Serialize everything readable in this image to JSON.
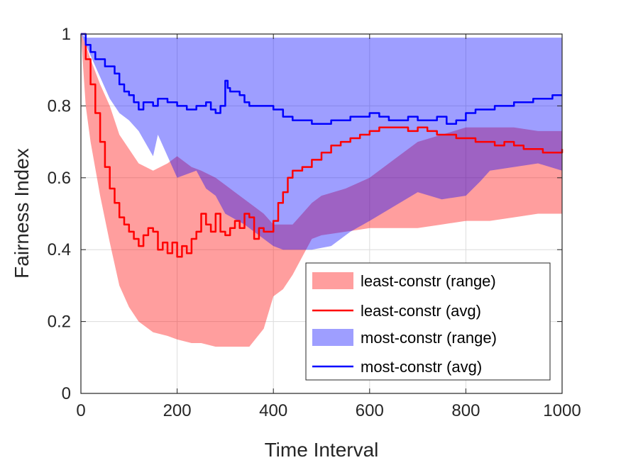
{
  "chart_data": {
    "type": "area",
    "xlabel": "Time Interval",
    "ylabel": "Fairness Index",
    "xlim": [
      0,
      1000
    ],
    "ylim": [
      0,
      1
    ],
    "xticks": [
      0,
      200,
      400,
      600,
      800,
      1000
    ],
    "yticks": [
      0,
      0.2,
      0.4,
      0.6,
      0.8,
      1
    ],
    "xtick_labels": [
      "0",
      "200",
      "400",
      "600",
      "800",
      "1000"
    ],
    "ytick_labels": [
      "0",
      "0.2",
      "0.4",
      "0.6",
      "0.8",
      "1"
    ],
    "grid": true,
    "legend_position": "bottom-right",
    "series": [
      {
        "name": "least-constr (range)",
        "kind": "range",
        "color": "#ff0000",
        "opacity": 0.38,
        "x": [
          0,
          10,
          20,
          40,
          60,
          80,
          100,
          120,
          150,
          180,
          200,
          230,
          250,
          280,
          300,
          320,
          350,
          380,
          400,
          420,
          440,
          460,
          480,
          500,
          550,
          600,
          650,
          700,
          750,
          800,
          850,
          900,
          950,
          1000
        ],
        "upper": [
          1,
          0.97,
          0.93,
          0.86,
          0.8,
          0.72,
          0.68,
          0.64,
          0.62,
          0.64,
          0.66,
          0.63,
          0.62,
          0.6,
          0.58,
          0.56,
          0.53,
          0.5,
          0.47,
          0.47,
          0.47,
          0.5,
          0.53,
          0.55,
          0.57,
          0.6,
          0.65,
          0.7,
          0.72,
          0.74,
          0.74,
          0.74,
          0.73,
          0.73
        ],
        "lower": [
          1,
          0.8,
          0.7,
          0.55,
          0.42,
          0.3,
          0.24,
          0.2,
          0.17,
          0.16,
          0.15,
          0.14,
          0.14,
          0.13,
          0.13,
          0.13,
          0.13,
          0.18,
          0.27,
          0.29,
          0.33,
          0.38,
          0.43,
          0.44,
          0.45,
          0.46,
          0.46,
          0.46,
          0.47,
          0.48,
          0.48,
          0.49,
          0.5,
          0.5
        ]
      },
      {
        "name": "least-constr (avg)",
        "kind": "line",
        "color": "#ff0000",
        "x": [
          0,
          10,
          20,
          30,
          40,
          50,
          60,
          70,
          80,
          90,
          100,
          110,
          120,
          130,
          140,
          150,
          160,
          170,
          180,
          190,
          200,
          210,
          220,
          230,
          240,
          250,
          260,
          270,
          280,
          290,
          300,
          310,
          320,
          330,
          340,
          350,
          360,
          370,
          380,
          390,
          400,
          410,
          420,
          430,
          440,
          460,
          480,
          500,
          520,
          540,
          560,
          580,
          600,
          620,
          640,
          660,
          680,
          700,
          720,
          740,
          760,
          780,
          800,
          820,
          840,
          860,
          880,
          900,
          920,
          940,
          960,
          980,
          1000
        ],
        "values": [
          1,
          0.93,
          0.86,
          0.78,
          0.7,
          0.63,
          0.57,
          0.53,
          0.49,
          0.47,
          0.45,
          0.43,
          0.41,
          0.44,
          0.46,
          0.45,
          0.4,
          0.42,
          0.39,
          0.42,
          0.38,
          0.41,
          0.39,
          0.43,
          0.45,
          0.5,
          0.47,
          0.45,
          0.5,
          0.45,
          0.44,
          0.46,
          0.48,
          0.46,
          0.5,
          0.49,
          0.43,
          0.46,
          0.45,
          0.45,
          0.48,
          0.53,
          0.56,
          0.6,
          0.62,
          0.63,
          0.65,
          0.67,
          0.69,
          0.7,
          0.71,
          0.72,
          0.73,
          0.74,
          0.74,
          0.74,
          0.73,
          0.74,
          0.73,
          0.72,
          0.72,
          0.71,
          0.71,
          0.7,
          0.7,
          0.69,
          0.7,
          0.69,
          0.68,
          0.68,
          0.67,
          0.67,
          0.68
        ]
      },
      {
        "name": "most-constr (range)",
        "kind": "range",
        "color": "#0000ff",
        "opacity": 0.38,
        "x": [
          0,
          10,
          20,
          40,
          60,
          80,
          100,
          120,
          150,
          160,
          200,
          240,
          260,
          280,
          300,
          340,
          360,
          380,
          400,
          420,
          450,
          480,
          520,
          560,
          600,
          650,
          700,
          750,
          800,
          830,
          850,
          900,
          950,
          1000
        ],
        "upper": [
          1,
          0.99,
          0.99,
          0.99,
          0.99,
          0.99,
          0.99,
          0.99,
          0.99,
          0.99,
          0.99,
          0.99,
          0.99,
          0.99,
          0.99,
          0.99,
          0.99,
          0.99,
          0.99,
          0.99,
          0.99,
          0.99,
          0.99,
          0.99,
          0.99,
          0.99,
          0.99,
          0.99,
          0.99,
          0.99,
          0.99,
          0.99,
          0.99,
          0.99
        ],
        "lower": [
          1,
          0.97,
          0.94,
          0.88,
          0.82,
          0.78,
          0.76,
          0.73,
          0.66,
          0.72,
          0.6,
          0.62,
          0.57,
          0.55,
          0.5,
          0.47,
          0.45,
          0.43,
          0.41,
          0.4,
          0.4,
          0.4,
          0.41,
          0.45,
          0.48,
          0.52,
          0.56,
          0.54,
          0.55,
          0.59,
          0.62,
          0.63,
          0.64,
          0.62
        ]
      },
      {
        "name": "most-constr (avg)",
        "kind": "line",
        "color": "#0000ff",
        "x": [
          0,
          10,
          20,
          30,
          40,
          50,
          60,
          70,
          80,
          90,
          100,
          110,
          120,
          130,
          140,
          150,
          160,
          180,
          200,
          220,
          240,
          260,
          270,
          280,
          290,
          300,
          305,
          310,
          320,
          330,
          340,
          350,
          360,
          380,
          400,
          420,
          440,
          460,
          480,
          500,
          520,
          540,
          560,
          580,
          600,
          620,
          640,
          660,
          680,
          700,
          720,
          740,
          760,
          780,
          800,
          820,
          840,
          860,
          880,
          900,
          920,
          940,
          960,
          980,
          1000
        ],
        "values": [
          1,
          0.97,
          0.95,
          0.93,
          0.93,
          0.91,
          0.91,
          0.89,
          0.86,
          0.84,
          0.83,
          0.81,
          0.79,
          0.81,
          0.81,
          0.8,
          0.82,
          0.81,
          0.8,
          0.79,
          0.8,
          0.81,
          0.79,
          0.78,
          0.8,
          0.87,
          0.85,
          0.84,
          0.84,
          0.83,
          0.81,
          0.8,
          0.8,
          0.8,
          0.79,
          0.77,
          0.76,
          0.76,
          0.75,
          0.75,
          0.76,
          0.76,
          0.77,
          0.77,
          0.78,
          0.77,
          0.76,
          0.76,
          0.77,
          0.76,
          0.76,
          0.77,
          0.75,
          0.76,
          0.78,
          0.79,
          0.79,
          0.8,
          0.8,
          0.81,
          0.81,
          0.82,
          0.82,
          0.83,
          0.83
        ]
      }
    ]
  }
}
